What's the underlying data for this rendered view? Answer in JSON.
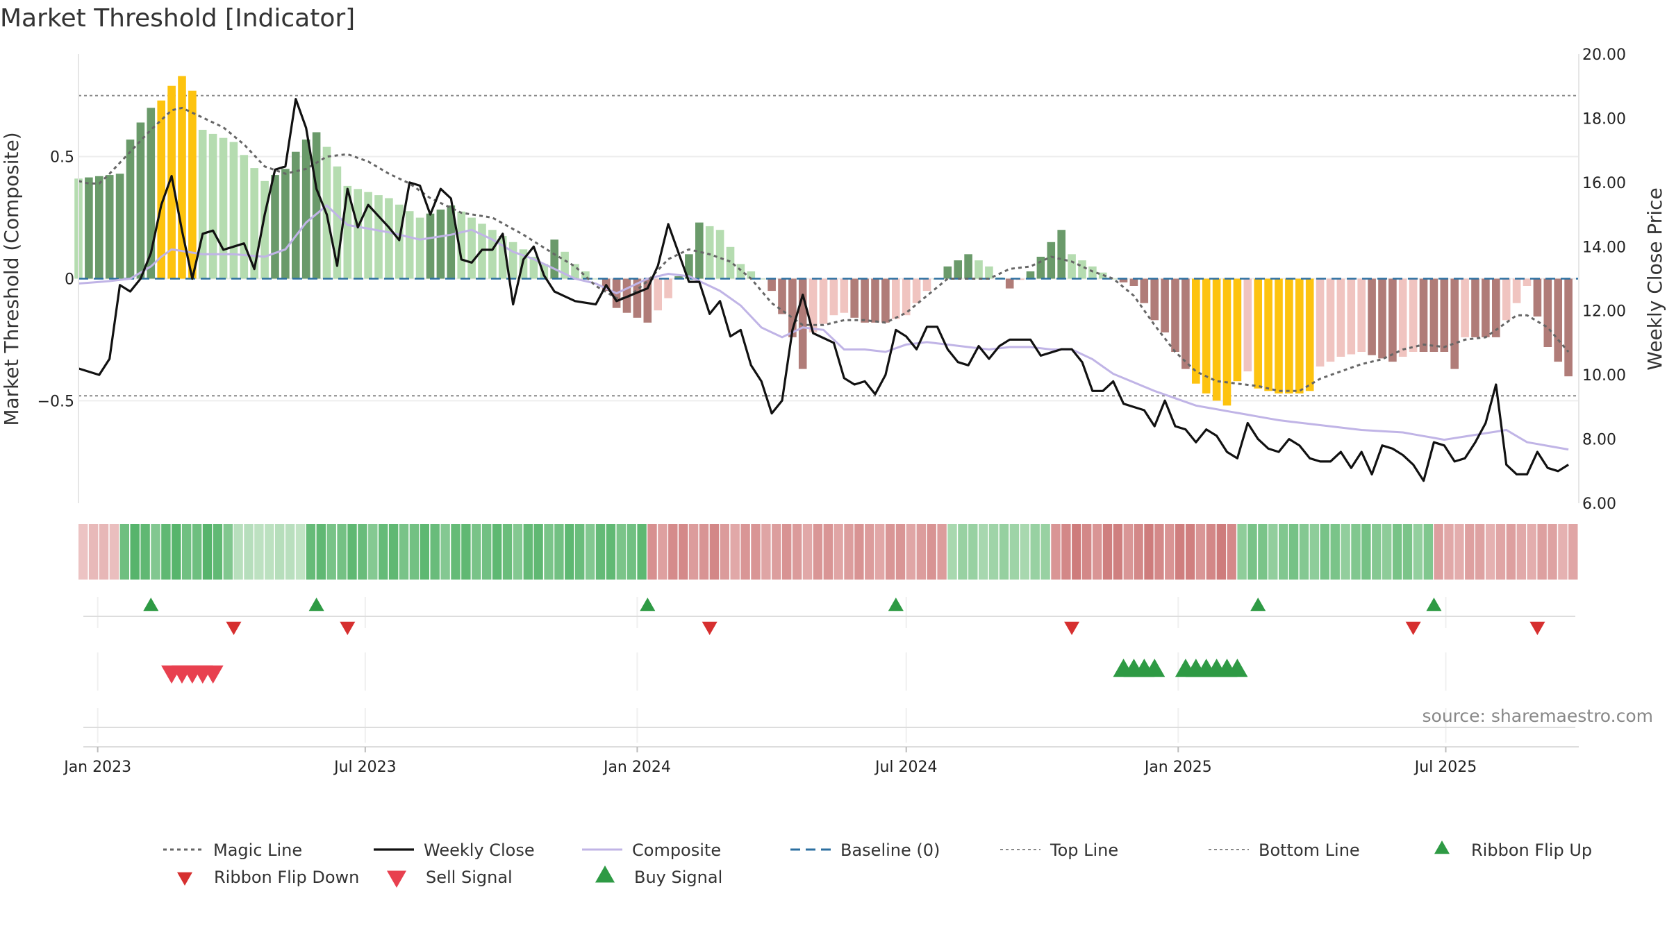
{
  "title": "Market Threshold [Indicator]",
  "source_note": "source: sharemaestro.com",
  "colors": {
    "bull_strong": "#6a9a6a",
    "bull_weak": "#b5dcb0",
    "bear_strong": "#b07c78",
    "bear_weak": "#f0c4c0",
    "extreme": "#fdc30f",
    "close": "#111111",
    "composite": "#c0b4e6",
    "magic": "#666666",
    "baseline": "#2c6fa0",
    "threshold": "#888888",
    "flip_up": "#2e9a44",
    "flip_down": "#d62f2f",
    "sell": "#e8404f",
    "buy": "#2e9a44"
  },
  "chart_data": {
    "type": "bar",
    "title": "Market Threshold [Indicator]",
    "ylabel": "Market Threshold (Composite)",
    "y2label": "Weekly Close Price",
    "ylim": [
      -0.92,
      0.92
    ],
    "y2lim": [
      6.0,
      20.0
    ],
    "xlim": [
      "2022-12-19",
      "2025-09-29"
    ],
    "yticks": [
      0.5,
      0,
      -0.5
    ],
    "ytick_labels": [
      "0.5",
      "0",
      "−0.5"
    ],
    "y2ticks": [
      20,
      18,
      16,
      14,
      12,
      10,
      8,
      6
    ],
    "y2tick_labels": [
      "20.00",
      "18.00",
      "16.00",
      "14.00",
      "12.00",
      "10.00",
      "8.00",
      "6.00"
    ],
    "xticks": [
      "2023-01-01",
      "2023-07-01",
      "2024-01-01",
      "2024-07-01",
      "2025-01-01",
      "2025-07-01"
    ],
    "xtick_labels": [
      "Jan 2023",
      "Jul 2023",
      "Jan 2024",
      "Jul 2024",
      "Jan 2025",
      "Jul 2025"
    ],
    "top_line": 0.75,
    "bottom_line": -0.48,
    "baseline": 0,
    "week_start": "2022-12-19",
    "week_count": 145,
    "composite_keys": [
      [
        0,
        0.41
      ],
      [
        4,
        0.43
      ],
      [
        5,
        0.57
      ],
      [
        6,
        0.64
      ],
      [
        7,
        0.7
      ],
      [
        8,
        0.73
      ],
      [
        9,
        0.79
      ],
      [
        10,
        0.83
      ],
      [
        11,
        0.77
      ],
      [
        12,
        0.61
      ],
      [
        15,
        0.56
      ],
      [
        18,
        0.4
      ],
      [
        20,
        0.45
      ],
      [
        21,
        0.52
      ],
      [
        22,
        0.57
      ],
      [
        23,
        0.6
      ],
      [
        24,
        0.54
      ],
      [
        26,
        0.38
      ],
      [
        30,
        0.33
      ],
      [
        33,
        0.25
      ],
      [
        36,
        0.3
      ],
      [
        38,
        0.25
      ],
      [
        42,
        0.15
      ],
      [
        45,
        0.06
      ],
      [
        46,
        0.16
      ],
      [
        48,
        0.06
      ],
      [
        50,
        0.0
      ],
      [
        51,
        -0.05
      ],
      [
        52,
        -0.12
      ],
      [
        53,
        -0.14
      ],
      [
        55,
        -0.18
      ],
      [
        57,
        -0.08
      ],
      [
        59,
        0.1
      ],
      [
        60,
        0.23
      ],
      [
        62,
        0.2
      ],
      [
        64,
        0.06
      ],
      [
        65,
        0.03
      ],
      [
        66,
        0.0
      ],
      [
        67,
        -0.05
      ],
      [
        69,
        -0.24
      ],
      [
        70,
        -0.37
      ],
      [
        71,
        -0.22
      ],
      [
        73,
        -0.15
      ],
      [
        74,
        -0.14
      ],
      [
        76,
        -0.18
      ],
      [
        78,
        -0.18
      ],
      [
        80,
        -0.15
      ],
      [
        82,
        -0.05
      ],
      [
        84,
        0.05
      ],
      [
        86,
        0.1
      ],
      [
        88,
        0.05
      ],
      [
        90,
        -0.04
      ],
      [
        92,
        0.03
      ],
      [
        94,
        0.15
      ],
      [
        95,
        0.2
      ],
      [
        96,
        0.1
      ],
      [
        98,
        0.05
      ],
      [
        100,
        0.0
      ],
      [
        102,
        -0.03
      ],
      [
        104,
        -0.17
      ],
      [
        105,
        -0.22
      ],
      [
        106,
        -0.3
      ],
      [
        107,
        -0.37
      ],
      [
        108,
        -0.43
      ],
      [
        109,
        -0.47
      ],
      [
        110,
        -0.5
      ],
      [
        111,
        -0.52
      ],
      [
        112,
        -0.42
      ],
      [
        113,
        -0.38
      ],
      [
        114,
        -0.45
      ],
      [
        116,
        -0.47
      ],
      [
        118,
        -0.47
      ],
      [
        119,
        -0.46
      ],
      [
        120,
        -0.36
      ],
      [
        122,
        -0.32
      ],
      [
        124,
        -0.3
      ],
      [
        127,
        -0.34
      ],
      [
        129,
        -0.3
      ],
      [
        132,
        -0.3
      ],
      [
        133,
        -0.37
      ],
      [
        134,
        -0.24
      ],
      [
        137,
        -0.24
      ],
      [
        140,
        -0.03
      ],
      [
        142,
        -0.28
      ],
      [
        144,
        -0.4
      ]
    ],
    "close_keys": [
      [
        0,
        10.2
      ],
      [
        2,
        10.0
      ],
      [
        3,
        10.5
      ],
      [
        4,
        12.8
      ],
      [
        5,
        12.6
      ],
      [
        6,
        13.0
      ],
      [
        7,
        13.8
      ],
      [
        8,
        15.3
      ],
      [
        9,
        16.2
      ],
      [
        10,
        14.5
      ],
      [
        11,
        13.0
      ],
      [
        12,
        14.4
      ],
      [
        13,
        14.5
      ],
      [
        14,
        13.9
      ],
      [
        16,
        14.1
      ],
      [
        17,
        13.3
      ],
      [
        18,
        15.0
      ],
      [
        19,
        16.4
      ],
      [
        20,
        16.5
      ],
      [
        21,
        18.6
      ],
      [
        22,
        17.7
      ],
      [
        23,
        15.8
      ],
      [
        24,
        15.0
      ],
      [
        25,
        13.4
      ],
      [
        26,
        15.8
      ],
      [
        27,
        14.6
      ],
      [
        28,
        15.3
      ],
      [
        30,
        14.6
      ],
      [
        31,
        14.2
      ],
      [
        32,
        16.0
      ],
      [
        33,
        15.9
      ],
      [
        34,
        15.0
      ],
      [
        35,
        15.8
      ],
      [
        36,
        15.5
      ],
      [
        37,
        13.6
      ],
      [
        38,
        13.5
      ],
      [
        39,
        13.9
      ],
      [
        40,
        13.9
      ],
      [
        41,
        14.4
      ],
      [
        42,
        12.2
      ],
      [
        43,
        13.6
      ],
      [
        44,
        14.0
      ],
      [
        45,
        13.1
      ],
      [
        46,
        12.6
      ],
      [
        48,
        12.3
      ],
      [
        50,
        12.2
      ],
      [
        51,
        12.8
      ],
      [
        52,
        12.3
      ],
      [
        55,
        12.7
      ],
      [
        56,
        13.4
      ],
      [
        57,
        14.7
      ],
      [
        58,
        13.8
      ],
      [
        59,
        12.9
      ],
      [
        60,
        12.9
      ],
      [
        61,
        11.9
      ],
      [
        62,
        12.3
      ],
      [
        63,
        11.2
      ],
      [
        64,
        11.4
      ],
      [
        65,
        10.3
      ],
      [
        66,
        9.8
      ],
      [
        67,
        8.8
      ],
      [
        68,
        9.2
      ],
      [
        69,
        11.4
      ],
      [
        70,
        12.5
      ],
      [
        71,
        11.3
      ],
      [
        73,
        11.0
      ],
      [
        74,
        9.9
      ],
      [
        75,
        9.7
      ],
      [
        76,
        9.8
      ],
      [
        77,
        9.4
      ],
      [
        78,
        10.0
      ],
      [
        79,
        11.4
      ],
      [
        80,
        11.2
      ],
      [
        81,
        10.8
      ],
      [
        82,
        11.5
      ],
      [
        83,
        11.5
      ],
      [
        84,
        10.8
      ],
      [
        85,
        10.4
      ],
      [
        86,
        10.3
      ],
      [
        87,
        10.9
      ],
      [
        88,
        10.5
      ],
      [
        89,
        10.9
      ],
      [
        90,
        11.1
      ],
      [
        91,
        11.1
      ],
      [
        92,
        11.1
      ],
      [
        93,
        10.6
      ],
      [
        95,
        10.8
      ],
      [
        96,
        10.8
      ],
      [
        97,
        10.4
      ],
      [
        98,
        9.5
      ],
      [
        99,
        9.5
      ],
      [
        100,
        9.8
      ],
      [
        101,
        9.1
      ],
      [
        103,
        8.9
      ],
      [
        104,
        8.4
      ],
      [
        105,
        9.2
      ],
      [
        106,
        8.4
      ],
      [
        107,
        8.3
      ],
      [
        108,
        7.9
      ],
      [
        109,
        8.3
      ],
      [
        110,
        8.1
      ],
      [
        111,
        7.6
      ],
      [
        112,
        7.4
      ],
      [
        113,
        8.5
      ],
      [
        114,
        8.0
      ],
      [
        115,
        7.7
      ],
      [
        116,
        7.6
      ],
      [
        117,
        8.0
      ],
      [
        118,
        7.8
      ],
      [
        119,
        7.4
      ],
      [
        120,
        7.3
      ],
      [
        121,
        7.3
      ],
      [
        122,
        7.6
      ],
      [
        123,
        7.1
      ],
      [
        124,
        7.6
      ],
      [
        125,
        6.9
      ],
      [
        126,
        7.8
      ],
      [
        127,
        7.7
      ],
      [
        128,
        7.5
      ],
      [
        129,
        7.2
      ],
      [
        130,
        6.7
      ],
      [
        131,
        7.9
      ],
      [
        132,
        7.8
      ],
      [
        133,
        7.3
      ],
      [
        134,
        7.4
      ],
      [
        135,
        7.9
      ],
      [
        136,
        8.5
      ],
      [
        137,
        9.7
      ],
      [
        138,
        7.2
      ],
      [
        139,
        6.9
      ],
      [
        140,
        6.9
      ],
      [
        141,
        7.6
      ],
      [
        142,
        7.1
      ],
      [
        143,
        7.0
      ],
      [
        144,
        7.2
      ]
    ],
    "composite_line_keys": [
      [
        0,
        -0.02
      ],
      [
        3,
        -0.01
      ],
      [
        5,
        0.0
      ],
      [
        7,
        0.05
      ],
      [
        8,
        0.09
      ],
      [
        9,
        0.12
      ],
      [
        12,
        0.1
      ],
      [
        15,
        0.1
      ],
      [
        18,
        0.09
      ],
      [
        20,
        0.12
      ],
      [
        22,
        0.23
      ],
      [
        24,
        0.3
      ],
      [
        26,
        0.22
      ],
      [
        30,
        0.19
      ],
      [
        33,
        0.16
      ],
      [
        36,
        0.18
      ],
      [
        38,
        0.2
      ],
      [
        40,
        0.16
      ],
      [
        42,
        0.11
      ],
      [
        44,
        0.08
      ],
      [
        46,
        0.04
      ],
      [
        48,
        0.0
      ],
      [
        50,
        -0.02
      ],
      [
        52,
        -0.06
      ],
      [
        55,
        0.0
      ],
      [
        57,
        0.02
      ],
      [
        59,
        0.01
      ],
      [
        62,
        -0.05
      ],
      [
        64,
        -0.11
      ],
      [
        66,
        -0.2
      ],
      [
        68,
        -0.24
      ],
      [
        70,
        -0.2
      ],
      [
        72,
        -0.21
      ],
      [
        74,
        -0.29
      ],
      [
        76,
        -0.29
      ],
      [
        78,
        -0.3
      ],
      [
        80,
        -0.27
      ],
      [
        82,
        -0.26
      ],
      [
        84,
        -0.27
      ],
      [
        86,
        -0.28
      ],
      [
        88,
        -0.29
      ],
      [
        90,
        -0.28
      ],
      [
        92,
        -0.28
      ],
      [
        94,
        -0.29
      ],
      [
        96,
        -0.29
      ],
      [
        98,
        -0.33
      ],
      [
        100,
        -0.39
      ],
      [
        104,
        -0.46
      ],
      [
        108,
        -0.52
      ],
      [
        112,
        -0.55
      ],
      [
        116,
        -0.58
      ],
      [
        120,
        -0.6
      ],
      [
        124,
        -0.62
      ],
      [
        128,
        -0.63
      ],
      [
        132,
        -0.66
      ],
      [
        135,
        -0.64
      ],
      [
        138,
        -0.62
      ],
      [
        140,
        -0.67
      ],
      [
        144,
        -0.7
      ]
    ],
    "magic_keys": [
      [
        0,
        0.4
      ],
      [
        1,
        0.39
      ],
      [
        2,
        0.39
      ],
      [
        3,
        0.43
      ],
      [
        5,
        0.52
      ],
      [
        7,
        0.61
      ],
      [
        9,
        0.69
      ],
      [
        10,
        0.7
      ],
      [
        12,
        0.66
      ],
      [
        14,
        0.62
      ],
      [
        16,
        0.55
      ],
      [
        18,
        0.46
      ],
      [
        20,
        0.43
      ],
      [
        22,
        0.45
      ],
      [
        24,
        0.5
      ],
      [
        26,
        0.51
      ],
      [
        28,
        0.48
      ],
      [
        30,
        0.43
      ],
      [
        32,
        0.39
      ],
      [
        34,
        0.33
      ],
      [
        37,
        0.27
      ],
      [
        40,
        0.25
      ],
      [
        43,
        0.18
      ],
      [
        46,
        0.1
      ],
      [
        48,
        0.05
      ],
      [
        50,
        -0.03
      ],
      [
        52,
        -0.08
      ],
      [
        53,
        -0.08
      ],
      [
        55,
        -0.01
      ],
      [
        57,
        0.08
      ],
      [
        59,
        0.12
      ],
      [
        61,
        0.1
      ],
      [
        63,
        0.07
      ],
      [
        65,
        0.0
      ],
      [
        67,
        -0.1
      ],
      [
        70,
        -0.19
      ],
      [
        72,
        -0.19
      ],
      [
        74,
        -0.17
      ],
      [
        76,
        -0.17
      ],
      [
        78,
        -0.18
      ],
      [
        80,
        -0.14
      ],
      [
        82,
        -0.07
      ],
      [
        84,
        0.0
      ],
      [
        86,
        0.0
      ],
      [
        88,
        0.0
      ],
      [
        90,
        0.04
      ],
      [
        92,
        0.05
      ],
      [
        94,
        0.09
      ],
      [
        96,
        0.07
      ],
      [
        98,
        0.03
      ],
      [
        100,
        0.0
      ],
      [
        102,
        -0.07
      ],
      [
        104,
        -0.19
      ],
      [
        106,
        -0.3
      ],
      [
        108,
        -0.38
      ],
      [
        110,
        -0.42
      ],
      [
        112,
        -0.43
      ],
      [
        114,
        -0.44
      ],
      [
        116,
        -0.46
      ],
      [
        118,
        -0.46
      ],
      [
        120,
        -0.41
      ],
      [
        122,
        -0.38
      ],
      [
        124,
        -0.35
      ],
      [
        126,
        -0.33
      ],
      [
        128,
        -0.29
      ],
      [
        130,
        -0.27
      ],
      [
        132,
        -0.28
      ],
      [
        134,
        -0.25
      ],
      [
        136,
        -0.24
      ],
      [
        138,
        -0.18
      ],
      [
        139,
        -0.15
      ],
      [
        140,
        -0.15
      ],
      [
        142,
        -0.2
      ],
      [
        144,
        -0.3
      ]
    ],
    "ribbon_scores": [
      -0.3,
      0.8,
      0.2,
      0.75,
      -0.7,
      -0.6,
      0.4,
      -0.8,
      0.6,
      -0.5
    ],
    "ribbon_bounds": [
      4,
      15,
      22,
      55,
      62,
      84,
      94,
      112,
      131,
      140
    ],
    "ribbon_flip_up": [
      "2023-02-06",
      "2023-05-29",
      "2024-01-08",
      "2024-06-24",
      "2025-02-24",
      "2025-06-23"
    ],
    "ribbon_flip_down": [
      "2023-04-03",
      "2023-06-19",
      "2024-02-19",
      "2024-10-21",
      "2025-06-09",
      "2025-09-01"
    ],
    "sell_signal": [
      "2023-02-20",
      "2023-02-27",
      "2023-03-06",
      "2023-03-13",
      "2023-03-20"
    ],
    "buy_signal": [
      "2024-11-25",
      "2024-12-02",
      "2024-12-09",
      "2024-12-16",
      "2025-01-06",
      "2025-01-13",
      "2025-01-20",
      "2025-01-27",
      "2025-02-03",
      "2025-02-10"
    ],
    "legend": [
      "Magic Line",
      "Weekly Close",
      "Composite",
      "Baseline (0)",
      "Top Line",
      "Bottom Line",
      "Ribbon Flip Up",
      "Ribbon Flip Down",
      "Sell Signal",
      "Buy Signal"
    ]
  }
}
